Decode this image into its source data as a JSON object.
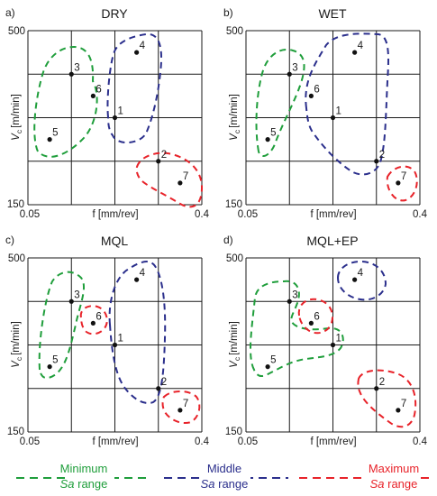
{
  "panels": [
    {
      "id": "a",
      "label": "a)",
      "title": "DRY",
      "y_axis": {
        "name": "V",
        "sub": "c",
        "unit": "[m/min]",
        "max": "500",
        "min": "150"
      },
      "x_axis": {
        "label": "f [mm/rev]",
        "min": "0.05",
        "max": "0.4"
      },
      "points": [
        {
          "id": "1",
          "col": 2.0,
          "row": 2.0
        },
        {
          "id": "2",
          "col": 3.0,
          "row": 3.0
        },
        {
          "id": "3",
          "col": 1.0,
          "row": 1.0
        },
        {
          "id": "4",
          "col": 2.5,
          "row": 0.5
        },
        {
          "id": "5",
          "col": 0.5,
          "row": 2.5
        },
        {
          "id": "6",
          "col": 1.5,
          "row": 1.5
        },
        {
          "id": "7",
          "col": 3.5,
          "row": 3.5
        }
      ]
    },
    {
      "id": "b",
      "label": "b)",
      "title": "WET",
      "y_axis": {
        "name": "V",
        "sub": "c",
        "unit": "[m/min]",
        "max": "500",
        "min": "150"
      },
      "x_axis": {
        "label": "f [mm/rev]",
        "min": "0.05",
        "max": "0.4"
      },
      "points": [
        {
          "id": "1",
          "col": 2.0,
          "row": 2.0
        },
        {
          "id": "2",
          "col": 3.0,
          "row": 3.0
        },
        {
          "id": "3",
          "col": 1.0,
          "row": 1.0
        },
        {
          "id": "4",
          "col": 2.5,
          "row": 0.5
        },
        {
          "id": "5",
          "col": 0.5,
          "row": 2.5
        },
        {
          "id": "6",
          "col": 1.5,
          "row": 1.5
        },
        {
          "id": "7",
          "col": 3.5,
          "row": 3.5
        }
      ]
    },
    {
      "id": "c",
      "label": "c)",
      "title": "MQL",
      "y_axis": {
        "name": "V",
        "sub": "c",
        "unit": "[m/min]",
        "max": "500",
        "min": "150"
      },
      "x_axis": {
        "label": "f [mm/rev]",
        "min": "0.05",
        "max": "0.4"
      },
      "points": [
        {
          "id": "1",
          "col": 2.0,
          "row": 2.0
        },
        {
          "id": "2",
          "col": 3.0,
          "row": 3.0
        },
        {
          "id": "3",
          "col": 1.0,
          "row": 1.0
        },
        {
          "id": "4",
          "col": 2.5,
          "row": 0.5
        },
        {
          "id": "5",
          "col": 0.5,
          "row": 2.5
        },
        {
          "id": "6",
          "col": 1.5,
          "row": 1.5
        },
        {
          "id": "7",
          "col": 3.5,
          "row": 3.5
        }
      ]
    },
    {
      "id": "d",
      "label": "d)",
      "title": "MQL+EP",
      "y_axis": {
        "name": "V",
        "sub": "c",
        "unit": "[m/min]",
        "max": "500",
        "min": "150"
      },
      "x_axis": {
        "label": "f [mm/rev]",
        "min": "0.05",
        "max": "0.4"
      },
      "points": [
        {
          "id": "1",
          "col": 2.0,
          "row": 2.0
        },
        {
          "id": "2",
          "col": 3.0,
          "row": 3.0
        },
        {
          "id": "3",
          "col": 1.0,
          "row": 1.0
        },
        {
          "id": "4",
          "col": 2.5,
          "row": 0.5
        },
        {
          "id": "5",
          "col": 0.5,
          "row": 2.5
        },
        {
          "id": "6",
          "col": 1.5,
          "row": 1.5
        },
        {
          "id": "7",
          "col": 3.5,
          "row": 3.5
        }
      ]
    }
  ],
  "legend": [
    {
      "line1": "Minimum",
      "line2_italic": "Sa",
      "line2_rest": " range",
      "color": "#1f9e3b"
    },
    {
      "line1": "Middle",
      "line2_italic": "Sa",
      "line2_rest": " range",
      "color": "#2b2f8c"
    },
    {
      "line1": "Maximum",
      "line2_italic": "Sa",
      "line2_rest": " range",
      "color": "#e8232a"
    }
  ],
  "colors": {
    "minimum": "#1f9e3b",
    "middle": "#2b2f8c",
    "maximum": "#e8232a",
    "grid": "#1a1a1a"
  }
}
